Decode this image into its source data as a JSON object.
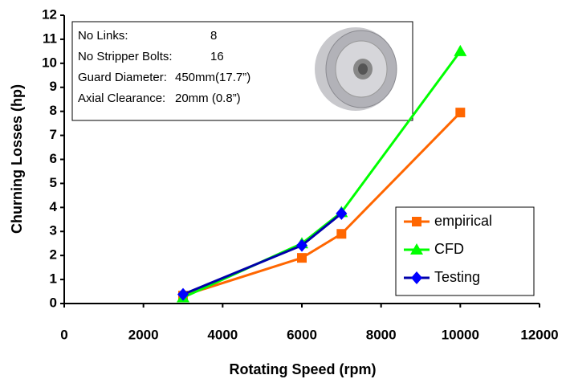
{
  "chart_data": {
    "type": "line",
    "x_label": "Rotating Speed (rpm)",
    "y_label": "Churning Losses (hp)",
    "xlim": [
      0,
      12000
    ],
    "xticks": [
      0,
      2000,
      4000,
      6000,
      8000,
      10000,
      12000
    ],
    "ylim": [
      0,
      12
    ],
    "yticks": [
      0,
      1,
      2,
      3,
      4,
      5,
      6,
      7,
      8,
      9,
      10,
      11,
      12
    ],
    "grid": false,
    "legend": "lower right",
    "annotation": [
      [
        "No Links:",
        "8"
      ],
      [
        "No Stripper Bolts:",
        "16"
      ],
      [
        "Guard Diameter:",
        "450mm(17.7”)"
      ],
      [
        "Axial Clearance:",
        "20mm (0.8”)"
      ]
    ],
    "series": [
      {
        "name": "empirical",
        "color": "#ff6600",
        "marker": "square",
        "x": [
          3000,
          6000,
          7000,
          10000
        ],
        "values": [
          0.33,
          1.9,
          2.9,
          7.95
        ]
      },
      {
        "name": "CFD",
        "color": "#00ff00",
        "marker": "triangle",
        "x": [
          3000,
          6000,
          7000,
          10000
        ],
        "values": [
          0.25,
          2.5,
          3.8,
          10.5
        ]
      },
      {
        "name": "Testing",
        "color": "#0000ff",
        "marker": "diamond",
        "x": [
          3000,
          6000,
          7000
        ],
        "values": [
          0.38,
          2.42,
          3.75
        ]
      }
    ]
  }
}
